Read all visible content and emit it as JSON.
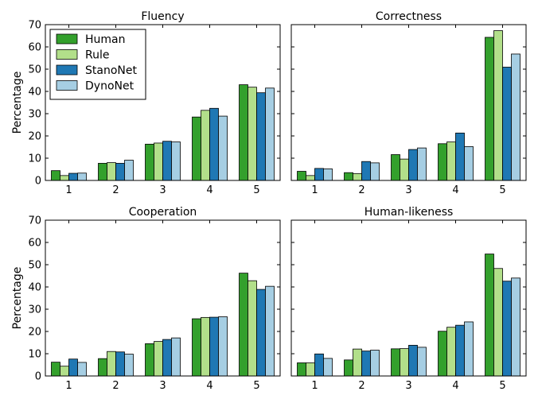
{
  "chart_data": [
    {
      "type": "bar",
      "title": "Fluency",
      "xlabel": "",
      "ylabel": "Percentage",
      "ylim": [
        0,
        70
      ],
      "yticks": [
        0,
        10,
        20,
        30,
        40,
        50,
        60,
        70
      ],
      "categories": [
        "1",
        "2",
        "3",
        "4",
        "5"
      ],
      "legend": "top-left",
      "series": [
        {
          "name": "Human",
          "color": "#33a02c",
          "values": [
            4.4,
            7.7,
            16.3,
            28.5,
            43.0
          ]
        },
        {
          "name": "Rule",
          "color": "#b2df8a",
          "values": [
            2.2,
            8.0,
            16.8,
            31.5,
            41.9
          ]
        },
        {
          "name": "StanoNet",
          "color": "#1f78b4",
          "values": [
            3.2,
            7.7,
            17.6,
            32.4,
            39.4
          ]
        },
        {
          "name": "DynoNet",
          "color": "#a6cee3",
          "values": [
            3.3,
            9.1,
            17.3,
            28.9,
            41.5
          ]
        }
      ]
    },
    {
      "type": "bar",
      "title": "Correctness",
      "xlabel": "",
      "ylabel": "",
      "ylim": [
        0,
        70
      ],
      "categories": [
        "1",
        "2",
        "3",
        "4",
        "5"
      ],
      "series": [
        {
          "name": "Human",
          "color": "#33a02c",
          "values": [
            4.1,
            3.5,
            11.6,
            16.5,
            64.3
          ]
        },
        {
          "name": "Rule",
          "color": "#b2df8a",
          "values": [
            2.2,
            3.1,
            9.6,
            17.3,
            67.3
          ]
        },
        {
          "name": "StanoNet",
          "color": "#1f78b4",
          "values": [
            5.4,
            8.5,
            13.9,
            21.3,
            50.9
          ]
        },
        {
          "name": "DynoNet",
          "color": "#a6cee3",
          "values": [
            5.2,
            7.9,
            14.6,
            15.2,
            56.8
          ]
        }
      ]
    },
    {
      "type": "bar",
      "title": "Cooperation",
      "xlabel": "",
      "ylabel": "Percentage",
      "ylim": [
        0,
        70
      ],
      "yticks": [
        0,
        10,
        20,
        30,
        40,
        50,
        60,
        70
      ],
      "categories": [
        "1",
        "2",
        "3",
        "4",
        "5"
      ],
      "series": [
        {
          "name": "Human",
          "color": "#33a02c",
          "values": [
            6.2,
            7.8,
            14.5,
            25.7,
            46.2
          ]
        },
        {
          "name": "Rule",
          "color": "#b2df8a",
          "values": [
            4.4,
            11.0,
            15.5,
            26.3,
            42.8
          ]
        },
        {
          "name": "StanoNet",
          "color": "#1f78b4",
          "values": [
            7.6,
            10.8,
            16.4,
            26.4,
            38.9
          ]
        },
        {
          "name": "DynoNet",
          "color": "#a6cee3",
          "values": [
            6.1,
            9.8,
            17.1,
            26.6,
            40.3
          ]
        }
      ]
    },
    {
      "type": "bar",
      "title": "Human-likeness",
      "xlabel": "",
      "ylabel": "",
      "ylim": [
        0,
        70
      ],
      "categories": [
        "1",
        "2",
        "3",
        "4",
        "5"
      ],
      "series": [
        {
          "name": "Human",
          "color": "#33a02c",
          "values": [
            5.9,
            7.2,
            12.2,
            20.1,
            54.8
          ]
        },
        {
          "name": "Rule",
          "color": "#b2df8a",
          "values": [
            5.9,
            12.1,
            12.3,
            21.9,
            48.3
          ]
        },
        {
          "name": "StanoNet",
          "color": "#1f78b4",
          "values": [
            9.9,
            11.2,
            13.8,
            22.8,
            42.6
          ]
        },
        {
          "name": "DynoNet",
          "color": "#a6cee3",
          "values": [
            7.9,
            11.6,
            12.9,
            24.3,
            44.0
          ]
        }
      ]
    }
  ]
}
